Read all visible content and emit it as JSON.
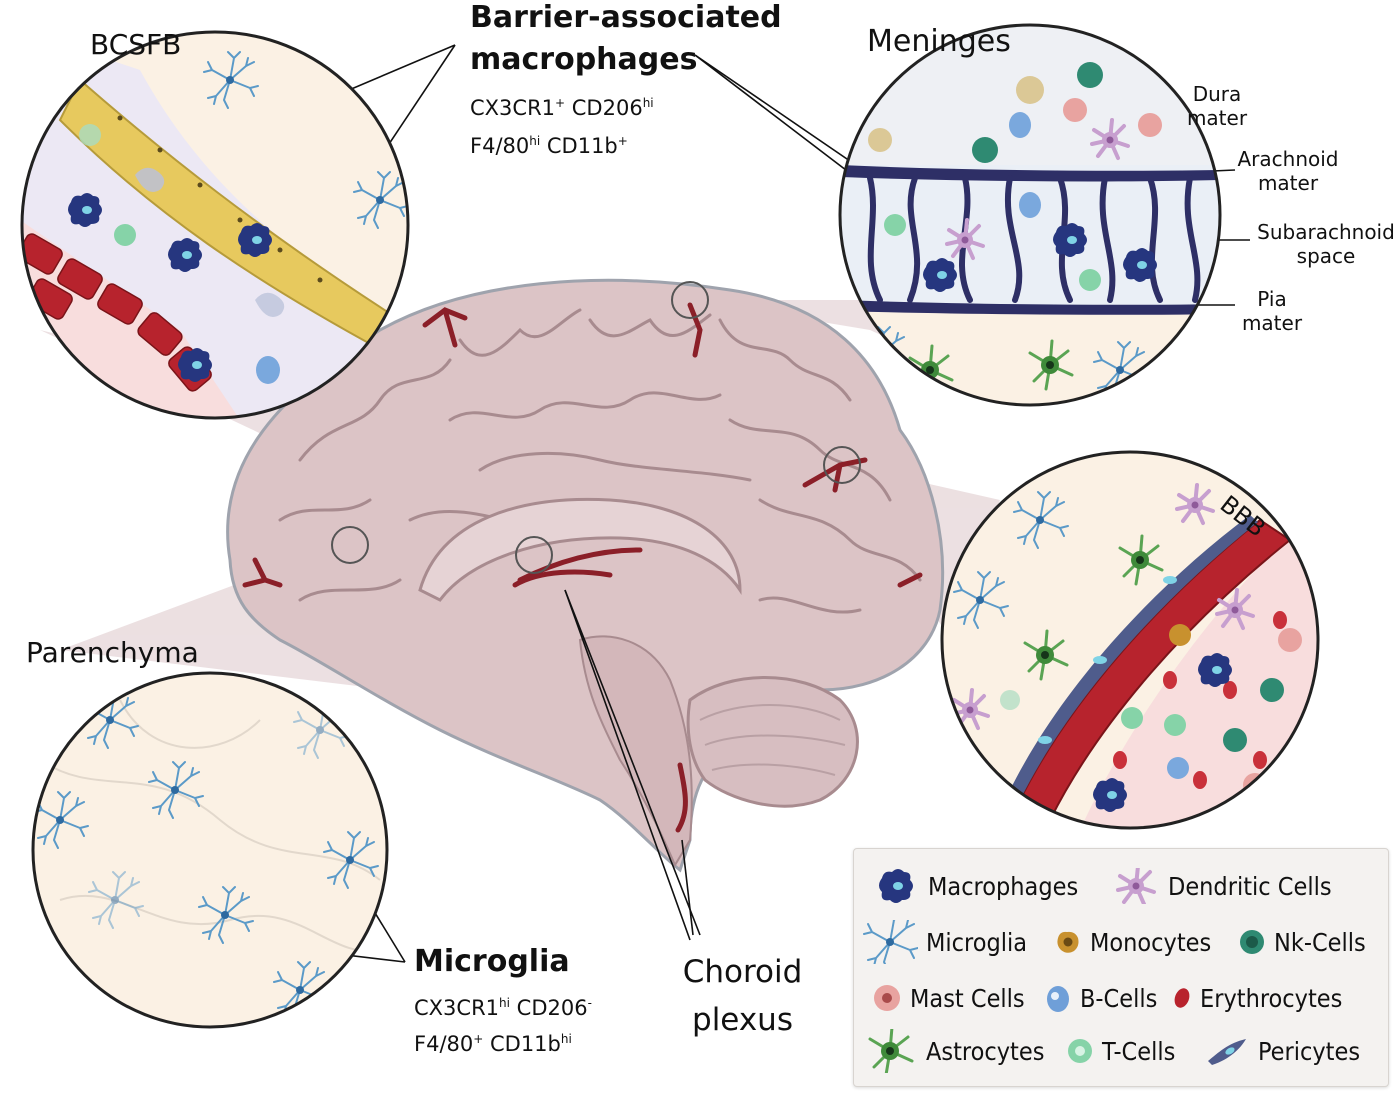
{
  "titles": {
    "bcsfb": "BCSFB",
    "meninges": "Meninges",
    "parenchyma": "Parenchyma",
    "bbb": "BBB",
    "bam_line1": "Barrier-associated",
    "bam_line2": "macrophages",
    "microglia": "Microglia",
    "choroid_line1": "Choroid",
    "choroid_line2": "plexus"
  },
  "markers": {
    "bam": [
      {
        "base": "CX3CR1",
        "sup": "+"
      },
      {
        "base": " CD206",
        "sup": "hi"
      },
      {
        "base": "F4/80",
        "sup": "hi"
      },
      {
        "base": " CD11b",
        "sup": "+"
      }
    ],
    "microglia": [
      {
        "base": "CX3CR1",
        "sup": "hi"
      },
      {
        "base": " CD206",
        "sup": "-"
      },
      {
        "base": "F4/80",
        "sup": "+"
      },
      {
        "base": " CD11b",
        "sup": "hi"
      }
    ]
  },
  "meninges_layers": {
    "dura": [
      "Dura",
      "mater"
    ],
    "arachnoid": [
      "Arachnoid",
      "mater"
    ],
    "subarachnoid": [
      "Subarachnoid",
      "space"
    ],
    "pia": [
      "Pia",
      "mater"
    ]
  },
  "legend": {
    "items": [
      {
        "label": "Macrophages",
        "icon": "macrophage-icon",
        "color": "#2b3f8c"
      },
      {
        "label": "Dendritic Cells",
        "icon": "dendritic-cell-icon",
        "color": "#c79fcf"
      },
      {
        "label": "Microglia",
        "icon": "microglia-icon",
        "color": "#6fa8d6"
      },
      {
        "label": "Monocytes",
        "icon": "monocyte-icon",
        "color": "#c8912e"
      },
      {
        "label": "Nk-Cells",
        "icon": "nk-cell-icon",
        "color": "#2f8a72"
      },
      {
        "label": "Mast Cells",
        "icon": "mast-cell-icon",
        "color": "#e8a3a0"
      },
      {
        "label": "B-Cells",
        "icon": "b-cell-icon",
        "color": "#6f9fd8"
      },
      {
        "label": "Erythrocytes",
        "icon": "erythrocyte-icon",
        "color": "#b8232d"
      },
      {
        "label": "Astrocytes",
        "icon": "astrocyte-icon",
        "color": "#4e9a48"
      },
      {
        "label": "T-Cells",
        "icon": "t-cell-icon",
        "color": "#86d3a8"
      },
      {
        "label": "Pericytes",
        "icon": "pericyte-icon",
        "color": "#4f5c8c"
      }
    ]
  },
  "colors": {
    "brain": "#d9c1c3",
    "brain_line": "#b09397",
    "vessel": "#8b1f28",
    "cream": "#fbf1e4",
    "lavender": "#ece8f4",
    "barrier_yellow": "#e7c95e",
    "arachnoid": "#2e2f66"
  }
}
